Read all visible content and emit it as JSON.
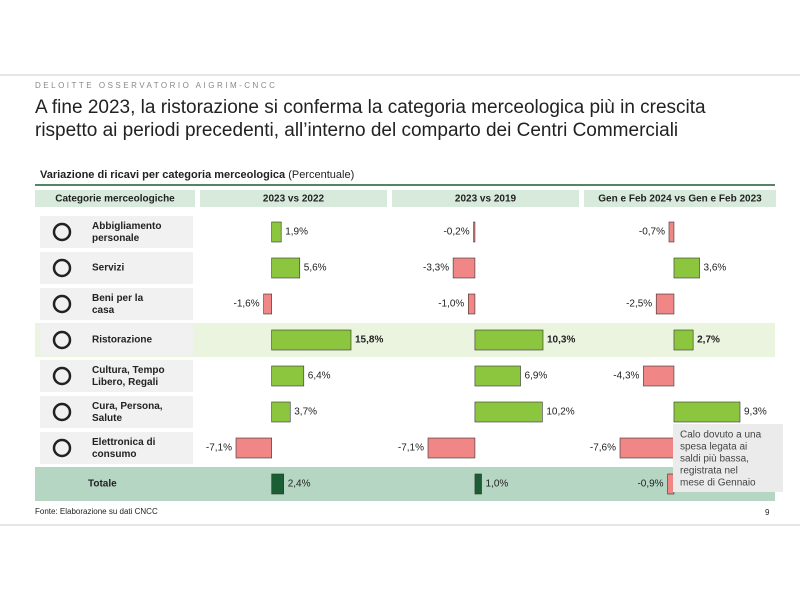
{
  "header": {
    "kicker": "DELOITTE OSSERVATORIO AIGRIM-CNCC",
    "title_lines": [
      "A fine 2023, la ristorazione si conferma la categoria merceologica più in crescita",
      "rispetto ai periodi precedenti, all’interno del comparto dei Centri Commerciali"
    ]
  },
  "chart_data": {
    "type": "bar",
    "title": "Variazione di ricavi per categoria merceologica",
    "subtitle": "(Percentuale)",
    "category_header": "Categorie merceologiche",
    "categories": [
      "Abbigliamento personale",
      "Servizi",
      "Beni per la casa",
      "Ristorazione",
      "Cultura, Tempo Libero, Regali",
      "Cura, Persona, Salute",
      "Elettronica di consumo",
      "Totale"
    ],
    "positive_color": "#8cc63f",
    "negative_color": "#f08686",
    "total_color": "#1c5e34",
    "series": [
      {
        "name": "2023 vs 2022",
        "values": [
          1.9,
          5.6,
          -1.6,
          15.8,
          6.4,
          3.7,
          -7.1,
          2.4
        ],
        "value_labels": [
          "1,9%",
          "5,6%",
          "-1,6%",
          "15,8%",
          "6,4%",
          "3,7%",
          "-7,1%",
          "2,4%"
        ]
      },
      {
        "name": "2023 vs 2019",
        "values": [
          -0.2,
          -3.3,
          -1.0,
          10.3,
          6.9,
          10.2,
          -7.1,
          1.0
        ],
        "value_labels": [
          "-0,2%",
          "-3,3%",
          "-1,0%",
          "10,3%",
          "6,9%",
          "10,2%",
          "-7,1%",
          "1,0%"
        ]
      },
      {
        "name": "Gen e Feb 2024 vs Gen e Feb 2023",
        "values": [
          -0.7,
          3.6,
          -2.5,
          2.7,
          -4.3,
          9.3,
          -7.6,
          -0.9
        ],
        "value_labels": [
          "-0,7%",
          "3,6%",
          "-2,5%",
          "2,7%",
          "-4,3%",
          "9,3%",
          "-7,6%",
          "-0,9%"
        ]
      }
    ],
    "annotation": [
      "Calo dovuto a una",
      "spesa legata ai",
      "saldi più bassa,",
      "registrata nel",
      "mese di Gennaio"
    ]
  },
  "footer": {
    "source": "Fonte: Elaborazione su dati CNCC",
    "page": "9"
  }
}
